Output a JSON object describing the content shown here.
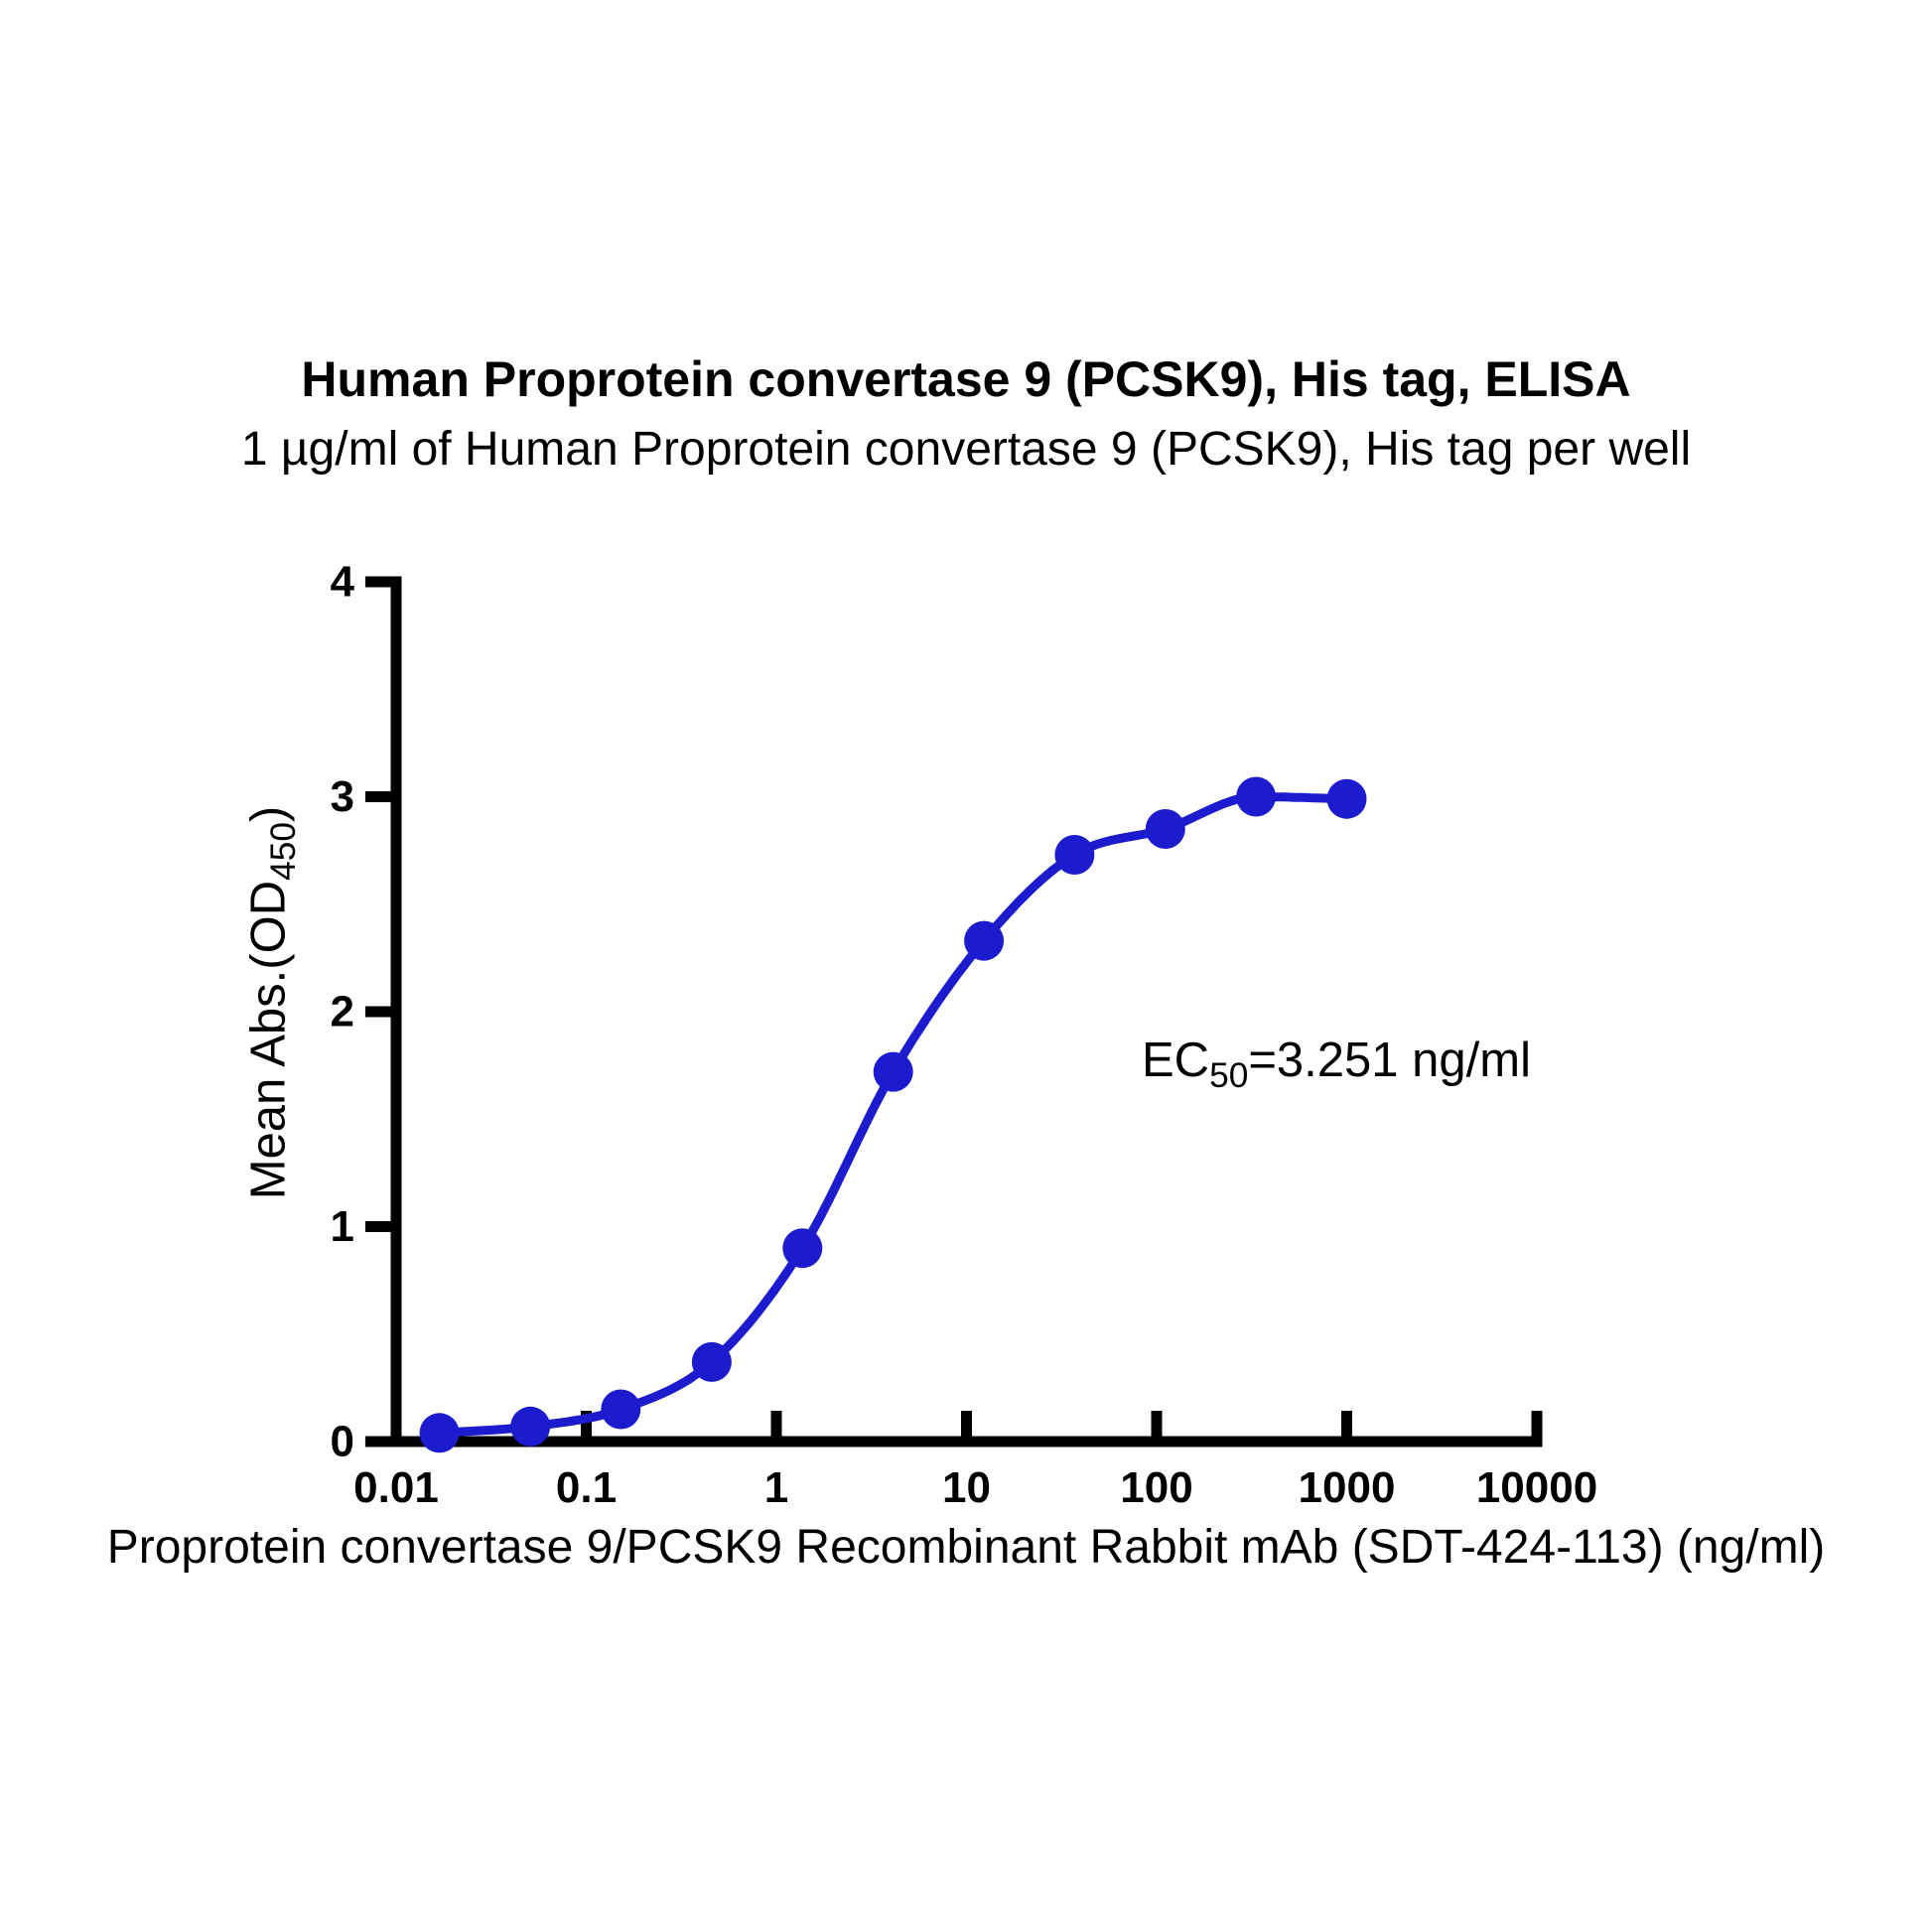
{
  "header": {
    "title": "Human Proprotein convertase 9 (PCSK9), His tag, ELISA",
    "subtitle": "1 µg/ml of Human Proprotein convertase 9 (PCSK9), His tag per well"
  },
  "annotation": {
    "ec50_prefix": "EC",
    "ec50_sub": "50",
    "ec50_value": "=3.251 ng/ml"
  },
  "axes": {
    "x": {
      "label": "Proprotein convertase 9/PCSK9 Recombinant Rabbit mAb (SDT-424-113) (ng/ml)",
      "scale": "log",
      "range": [
        0.01,
        10000
      ],
      "tick_values": [
        0.01,
        0.1,
        1,
        10,
        100,
        1000,
        10000
      ],
      "tick_labels": [
        "0.01",
        "0.1",
        "1",
        "10",
        "100",
        "1000",
        "10000"
      ]
    },
    "y": {
      "label_prefix": "Mean Abs.(OD",
      "label_sub": "450",
      "label_suffix": ")",
      "scale": "linear",
      "range": [
        0,
        4
      ],
      "tick_values": [
        0,
        1,
        2,
        3,
        4
      ],
      "tick_labels": [
        "0",
        "1",
        "2",
        "3",
        "4"
      ]
    }
  },
  "chart_data": {
    "type": "scatter",
    "title": "Human Proprotein convertase 9 (PCSK9), His tag, ELISA",
    "subtitle": "1 µg/ml of Human Proprotein convertase 9 (PCSK9), His tag per well",
    "xlabel": "Proprotein convertase 9/PCSK9 Recombinant Rabbit mAb (SDT-424-113) (ng/ml)",
    "ylabel": "Mean Abs.(OD450)",
    "x_scale": "log",
    "xlim": [
      0.01,
      10000
    ],
    "ylim": [
      0,
      4
    ],
    "x_ticks": [
      0.01,
      0.1,
      1,
      10,
      100,
      1000,
      10000
    ],
    "y_ticks": [
      0,
      1,
      2,
      3,
      4
    ],
    "x": [
      0.0169,
      0.0508,
      0.152,
      0.457,
      1.372,
      4.115,
      12.35,
      37.04,
      111.1,
      333.3,
      1000
    ],
    "y": [
      0.04,
      0.07,
      0.15,
      0.37,
      0.9,
      1.72,
      2.33,
      2.73,
      2.85,
      3.0,
      2.99
    ],
    "ec50_ng_ml": 3.251,
    "annotation": "EC50=3.251 ng/ml",
    "curve": "sigmoidal dose-response through points",
    "marker": "circle",
    "marker_color": "#1C1CCE",
    "line_color": "#1C1CCE",
    "axis_color": "#000000",
    "legend": "none",
    "grid": "off"
  }
}
